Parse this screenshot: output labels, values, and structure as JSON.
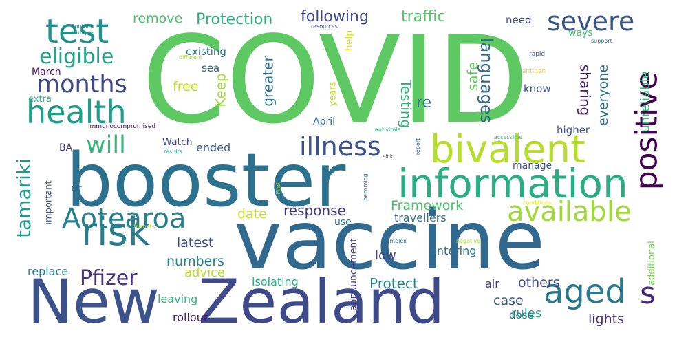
{
  "words": [
    {
      "text": "COVID",
      "color": "#5ec962"
    },
    {
      "text": "booster",
      "color": "#2c728e"
    },
    {
      "text": "vaccine",
      "color": "#31688e"
    },
    {
      "text": "New",
      "color": "#3b528b"
    },
    {
      "text": "Zealand",
      "color": "#3e4a89"
    },
    {
      "text": "information",
      "color": "#28ae80"
    },
    {
      "text": "bivalent",
      "color": "#b5de2b"
    },
    {
      "text": "test",
      "color": "#21918c"
    },
    {
      "text": "health",
      "color": "#1f9e89"
    },
    {
      "text": "risk",
      "color": "#287d8e"
    },
    {
      "text": "Aotearoa",
      "color": "#26828e"
    },
    {
      "text": "aged",
      "color": "#2a788e"
    },
    {
      "text": "available",
      "color": "#a0da39"
    },
    {
      "text": "severe",
      "color": "#38588c"
    },
    {
      "text": "positive",
      "color": "#440154"
    },
    {
      "text": "illness",
      "color": "#3b528b"
    },
    {
      "text": "months",
      "color": "#3e4989"
    },
    {
      "text": "will",
      "color": "#35b779"
    },
    {
      "text": "eligible",
      "color": "#20a486"
    },
    {
      "text": "tamariki",
      "color": "#1f9a8a"
    },
    {
      "text": "Pfizer",
      "color": "#46327e"
    },
    {
      "text": "s",
      "color": "#482878"
    },
    {
      "text": "languages",
      "color": "#31688e"
    },
    {
      "text": "Protection",
      "color": "#2db27d"
    },
    {
      "text": "following",
      "color": "#3e4a89"
    },
    {
      "text": "traffic",
      "color": "#52c569"
    },
    {
      "text": "remove",
      "color": "#4ac16d"
    },
    {
      "text": "Framework",
      "color": "#4ac16d"
    },
    {
      "text": "response",
      "color": "#453781"
    },
    {
      "text": "Testing",
      "color": "#2fb47c"
    },
    {
      "text": "safe",
      "color": "#63cb5f"
    },
    {
      "text": "greater",
      "color": "#2c728e"
    },
    {
      "text": "Keep",
      "color": "#a5db36"
    },
    {
      "text": "re",
      "color": "#2c728e"
    },
    {
      "text": "latest",
      "color": "#3e4989"
    },
    {
      "text": "numbers",
      "color": "#26828e"
    },
    {
      "text": "advice",
      "color": "#b8de29"
    },
    {
      "text": "date",
      "color": "#c8e020"
    },
    {
      "text": "ended",
      "color": "#38588c"
    },
    {
      "text": "free",
      "color": "#c2df23"
    },
    {
      "text": "sharing",
      "color": "#481f70"
    },
    {
      "text": "everyone",
      "color": "#2a788e"
    },
    {
      "text": "unreliable",
      "color": "#3bbb75"
    },
    {
      "text": "Protect",
      "color": "#24878e"
    },
    {
      "text": "others",
      "color": "#3e4a89"
    },
    {
      "text": "case",
      "color": "#3a548c"
    },
    {
      "text": "rules",
      "color": "#22a884"
    },
    {
      "text": "lights",
      "color": "#46337e"
    },
    {
      "text": "low",
      "color": "#414487"
    },
    {
      "text": "entering",
      "color": "#2d718e"
    },
    {
      "text": "travellers",
      "color": "#2c728e"
    },
    {
      "text": "isolating",
      "color": "#27ad81"
    },
    {
      "text": "leaving",
      "color": "#2db27d"
    },
    {
      "text": "rollout",
      "color": "#48196b"
    },
    {
      "text": "replace",
      "color": "#277f8e"
    },
    {
      "text": "announcement",
      "color": "#433e85"
    },
    {
      "text": "dose",
      "color": "#2a788e"
    },
    {
      "text": "air",
      "color": "#443a83"
    },
    {
      "text": "manage",
      "color": "#3b528b"
    },
    {
      "text": "higher",
      "color": "#3d4d8a"
    },
    {
      "text": "know",
      "color": "#3a548c"
    },
    {
      "text": "existing",
      "color": "#2d708e"
    },
    {
      "text": "sea",
      "color": "#34618d"
    },
    {
      "text": "help",
      "color": "#dde318"
    },
    {
      "text": "need",
      "color": "#3e4a89"
    },
    {
      "text": "ways",
      "color": "#42be71"
    },
    {
      "text": "years",
      "color": "#c0df25"
    },
    {
      "text": "April",
      "color": "#306a8e"
    },
    {
      "text": "Watch",
      "color": "#3f4788"
    },
    {
      "text": "March",
      "color": "#471063"
    },
    {
      "text": "BA",
      "color": "#443983"
    },
    {
      "text": "extra",
      "color": "#28ae80"
    },
    {
      "text": "important",
      "color": "#3d4e8a"
    },
    {
      "text": "immunocompromised",
      "color": "#440154"
    },
    {
      "text": "use",
      "color": "#2e6e8e"
    },
    {
      "text": "additional",
      "color": "#75d054"
    },
    {
      "text": "rapid",
      "color": "#3a548c"
    },
    {
      "text": "antigen",
      "color": "#d8e219"
    },
    {
      "text": "support",
      "color": "#2a788e"
    },
    {
      "text": "resources",
      "color": "#3e4a89"
    },
    {
      "text": "Contact",
      "color": "#26818e"
    },
    {
      "text": "multiple",
      "color": "#1f968b"
    },
    {
      "text": "different",
      "color": "#addc30"
    },
    {
      "text": "sick",
      "color": "#3b518b"
    },
    {
      "text": "results",
      "color": "#1f958b"
    },
    {
      "text": "antivirals",
      "color": "#2eb37c"
    },
    {
      "text": "accessible",
      "color": "#35b779"
    },
    {
      "text": "report",
      "color": "#32658e"
    },
    {
      "text": "becoming",
      "color": "#2c738e"
    },
    {
      "text": "Find",
      "color": "#b0dd2f"
    },
    {
      "text": "RAT",
      "color": "#33638d"
    },
    {
      "text": "formats",
      "color": "#b2dd2d"
    },
    {
      "text": "conditions",
      "color": "#e5e419"
    },
    {
      "text": "complex",
      "color": "#2d708e"
    },
    {
      "text": "negative",
      "color": "#a2da37"
    }
  ]
}
